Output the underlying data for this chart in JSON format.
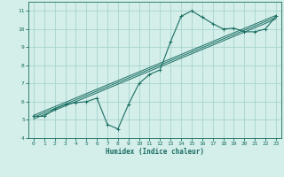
{
  "xlabel": "Humidex (Indice chaleur)",
  "bg_color": "#d4eeea",
  "grid_color": "#a8d4ce",
  "line_color": "#1a6e62",
  "xlim": [
    -0.5,
    23.5
  ],
  "ylim": [
    4,
    11.5
  ],
  "xticks": [
    0,
    1,
    2,
    3,
    4,
    5,
    6,
    7,
    8,
    9,
    10,
    11,
    12,
    13,
    14,
    15,
    16,
    17,
    18,
    19,
    20,
    21,
    22,
    23
  ],
  "yticks": [
    4,
    5,
    6,
    7,
    8,
    9,
    10,
    11
  ],
  "curve_x": [
    0,
    1,
    2,
    3,
    4,
    5,
    6,
    7,
    8,
    9,
    10,
    11,
    12,
    13,
    14,
    15,
    16,
    17,
    18,
    19,
    20,
    21,
    22,
    23
  ],
  "curve_y": [
    5.2,
    5.2,
    5.6,
    5.85,
    5.95,
    6.0,
    6.2,
    4.75,
    4.5,
    5.85,
    7.0,
    7.5,
    7.75,
    9.3,
    10.7,
    11.0,
    10.65,
    10.3,
    10.0,
    10.05,
    9.85,
    9.85,
    10.0,
    10.7
  ],
  "reg_lines": [
    {
      "x": [
        0,
        23
      ],
      "y": [
        5.05,
        10.55
      ]
    },
    {
      "x": [
        0,
        23
      ],
      "y": [
        5.15,
        10.65
      ]
    },
    {
      "x": [
        0,
        23
      ],
      "y": [
        5.25,
        10.75
      ]
    }
  ]
}
